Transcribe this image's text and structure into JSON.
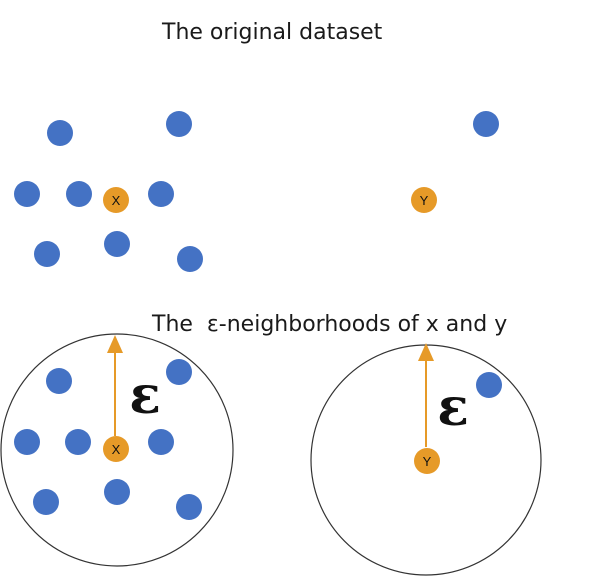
{
  "titles": {
    "top": "The original dataset",
    "bottom": "The  ε-neighborhoods of x and y"
  },
  "labels": {
    "point_x": "X",
    "point_y": "Y",
    "epsilon": "ε"
  },
  "colors": {
    "background": "#ffffff",
    "blue_point": "#4472c4",
    "orange_point": "#e69a28",
    "arrow": "#e69a28",
    "circle_stroke": "#333333",
    "text": "#1a1a1a"
  }
}
